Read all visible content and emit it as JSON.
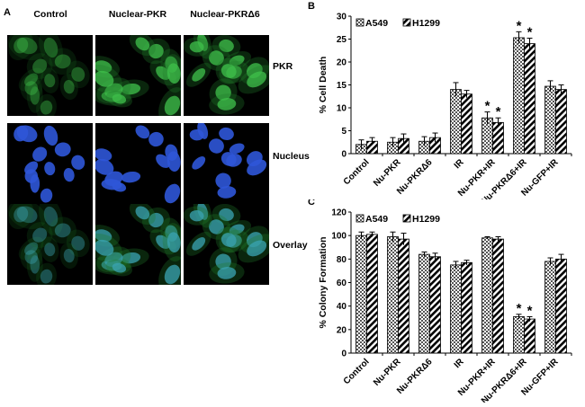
{
  "panel_a": {
    "letter": "A",
    "columns": [
      "Control",
      "Nuclear-PKR",
      "Nuclear-PKRΔ6"
    ],
    "rows": [
      "PKR",
      "Nucleus",
      "Overlay"
    ]
  },
  "chart_data": [
    {
      "panel": "B",
      "type": "bar",
      "ylabel": "% Cell Death",
      "ylim": [
        0,
        30
      ],
      "yticks": [
        0,
        5,
        10,
        15,
        20,
        25,
        30
      ],
      "categories": [
        "Control",
        "Nu-PKR",
        "Nu-PKRΔ6",
        "IR",
        "Nu-PKR+IR",
        "Nu-PKRΔ6+IR",
        "Nu-GFP+IR"
      ],
      "series": [
        {
          "name": "A549",
          "values": [
            2.0,
            2.5,
            2.7,
            14.0,
            7.8,
            25.3,
            14.7
          ],
          "errors": [
            1.0,
            1.0,
            1.0,
            1.5,
            1.3,
            1.3,
            1.2
          ]
        },
        {
          "name": "H1299",
          "values": [
            2.7,
            3.3,
            3.5,
            13.0,
            6.8,
            24.0,
            14.0
          ],
          "errors": [
            0.8,
            1.0,
            1.0,
            0.8,
            1.0,
            1.2,
            1.0
          ]
        }
      ],
      "significance": [
        {
          "category": 4,
          "series": [
            0,
            1
          ]
        },
        {
          "category": 5,
          "series": [
            0,
            1
          ]
        }
      ],
      "significance_mark": "*",
      "legend_position": "top-left"
    },
    {
      "panel": "C",
      "type": "bar",
      "ylabel": "% Colony Formation",
      "ylim": [
        0,
        120
      ],
      "yticks": [
        0,
        20,
        40,
        60,
        80,
        100,
        120
      ],
      "categories": [
        "Control",
        "Nu-PKR",
        "Nu-PKRΔ6",
        "IR",
        "Nu-PKR+IR",
        "Nu-PKRΔ6+IR",
        "Nu-GFP+IR"
      ],
      "series": [
        {
          "name": "A549",
          "values": [
            100,
            99,
            84,
            75,
            98,
            31,
            78
          ],
          "errors": [
            3,
            4,
            2,
            3,
            1,
            2,
            3
          ]
        },
        {
          "name": "H1299",
          "values": [
            101,
            97,
            82,
            77,
            97,
            29,
            80
          ],
          "errors": [
            2,
            5,
            3,
            2,
            2,
            2,
            4
          ]
        }
      ],
      "significance": [
        {
          "category": 5,
          "series": [
            0,
            1
          ]
        }
      ],
      "significance_mark": "*",
      "legend_position": "top-left"
    }
  ]
}
